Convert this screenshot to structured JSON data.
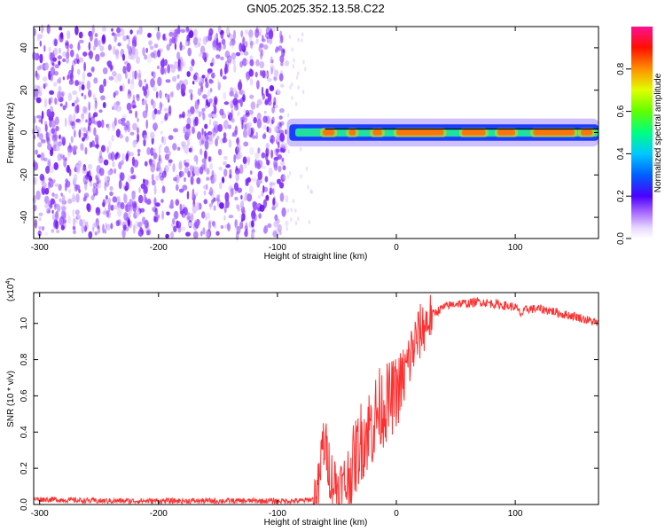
{
  "title": "GN05.2025.352.13.58.C22",
  "chart_data": [
    {
      "type": "heatmap",
      "name": "spectrogram",
      "xlabel": "Height of straight line (km)",
      "ylabel": "Frequency (Hz)",
      "xlim": [
        -305,
        170
      ],
      "ylim": [
        -50,
        50
      ],
      "xticks": [
        -300,
        -200,
        -100,
        0,
        100
      ],
      "yticks": [
        -40,
        -20,
        0,
        20,
        40
      ],
      "colorbar": {
        "label": "Normalized spectral amplitude",
        "range": [
          0,
          1
        ],
        "ticks": [
          "0.0",
          "0.2",
          "0.4",
          "0.6",
          "0.8"
        ]
      },
      "noise_region_km": [
        -305,
        -92
      ],
      "signal_band_hz": [
        -3,
        3
      ],
      "annotation": "ridge near 0 Hz after ~ -92 km, normalized amplitude ~0.8-1.0"
    },
    {
      "type": "line",
      "name": "snr",
      "xlabel": "Height of straight line (km)",
      "ylabel": "SNR (10 * v/v)",
      "y_multiplier": "(x10",
      "y_multiplier_exp": "4",
      "multiplier_close": ")",
      "xlim": [
        -305,
        170
      ],
      "ylim": [
        0,
        1.17
      ],
      "xticks": [
        -300,
        -200,
        -100,
        0,
        100
      ],
      "yticks": [
        0.0,
        0.2,
        0.4,
        0.6,
        0.8,
        1.0
      ],
      "series": [
        {
          "name": "SNR",
          "color": "#ff3030",
          "x": [
            -305,
            -250,
            -200,
            -150,
            -100,
            -80,
            -70,
            -65,
            -62,
            -58,
            -55,
            -50,
            -45,
            -40,
            -35,
            -30,
            -25,
            -20,
            -15,
            -10,
            -5,
            0,
            5,
            10,
            15,
            20,
            25,
            30,
            40,
            50,
            60,
            70,
            80,
            90,
            100,
            105,
            110,
            120,
            130,
            140,
            150,
            160,
            170
          ],
          "y": [
            0.03,
            0.02,
            0.02,
            0.02,
            0.02,
            0.02,
            0.03,
            0.1,
            0.35,
            0.28,
            0.15,
            0.1,
            0.08,
            0.15,
            0.25,
            0.35,
            0.4,
            0.45,
            0.52,
            0.55,
            0.58,
            0.62,
            0.68,
            0.78,
            0.88,
            0.95,
            1.0,
            1.05,
            1.09,
            1.11,
            1.11,
            1.12,
            1.11,
            1.1,
            1.09,
            1.05,
            1.08,
            1.08,
            1.07,
            1.05,
            1.04,
            1.02,
            1.0
          ]
        }
      ]
    }
  ],
  "colors": {
    "signal": "#ff3030",
    "noise_purple": "#7a1fff",
    "ridge_red": "#ff1a1a"
  }
}
